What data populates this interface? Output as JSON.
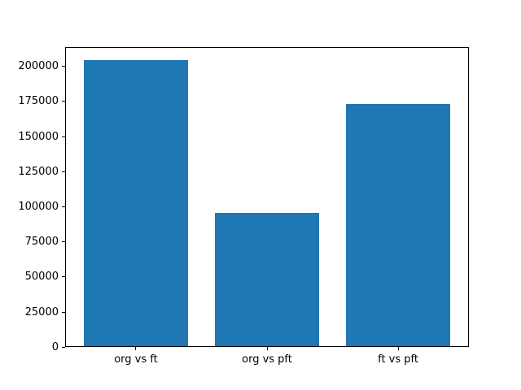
{
  "chart_data": {
    "type": "bar",
    "title": "",
    "xlabel": "",
    "ylabel": "",
    "categories": [
      "org vs ft",
      "org vs pft",
      "ft vs pft"
    ],
    "values": [
      204600,
      95600,
      173000
    ],
    "yticks": [
      0,
      25000,
      50000,
      75000,
      100000,
      125000,
      150000,
      175000,
      200000
    ],
    "ylim": [
      0,
      214000
    ],
    "bar_color": "#1f77b4",
    "axes_color": "#000000",
    "background_color": "#ffffff",
    "grid": false,
    "legend_position": "none"
  }
}
